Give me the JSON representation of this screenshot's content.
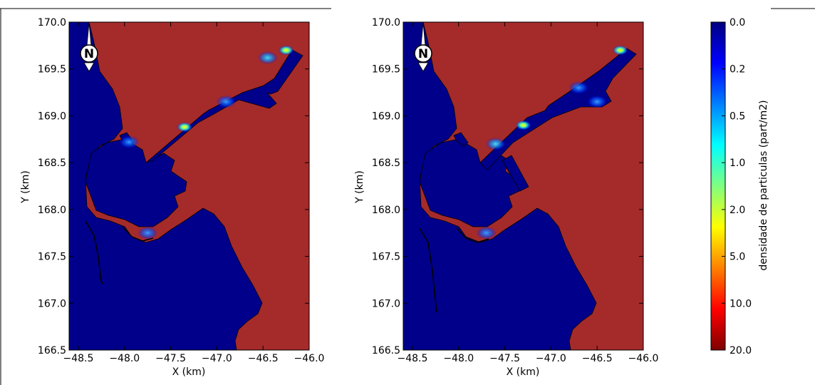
{
  "chart_data": [
    {
      "type": "heatmap",
      "panel": "left",
      "xlabel": "X (km)",
      "ylabel": "Y (km)",
      "xlim": [
        -48.6,
        -46.0
      ],
      "ylim": [
        166.5,
        170.0
      ],
      "xticks": [
        "−48.5",
        "−48.0",
        "−47.5",
        "−47.0",
        "−46.5",
        "−46.0"
      ],
      "xtick_values": [
        -48.5,
        -48.0,
        -47.5,
        -47.0,
        -46.5,
        -46.0
      ],
      "yticks": [
        "166.5",
        "167.0",
        "167.5",
        "168.0",
        "168.5",
        "169.0",
        "169.5",
        "170.0"
      ],
      "ytick_values": [
        166.5,
        167.0,
        167.5,
        168.0,
        168.5,
        169.0,
        169.5,
        170.0
      ],
      "background_color": "#a52a2a",
      "water_color": "#00008b",
      "compass_label": "N",
      "hotspots": [
        {
          "x": -46.25,
          "y": 169.7,
          "level": "yellow"
        },
        {
          "x": -46.45,
          "y": 169.62,
          "level": "cyan"
        },
        {
          "x": -47.35,
          "y": 168.88,
          "level": "yellow"
        },
        {
          "x": -46.9,
          "y": 169.15,
          "level": "lightblue"
        },
        {
          "x": -47.95,
          "y": 168.72,
          "level": "lightblue"
        },
        {
          "x": -47.75,
          "y": 167.75,
          "level": "lightblue"
        }
      ]
    },
    {
      "type": "heatmap",
      "panel": "right",
      "xlabel": "X (km)",
      "ylabel": "Y (km)",
      "xlim": [
        -48.6,
        -46.0
      ],
      "ylim": [
        166.5,
        170.0
      ],
      "xticks": [
        "−48.5",
        "−48.0",
        "−47.5",
        "−47.0",
        "−46.5",
        "−46.0"
      ],
      "xtick_values": [
        -48.5,
        -48.0,
        -47.5,
        -47.0,
        -46.5,
        -46.0
      ],
      "yticks": [
        "166.5",
        "167.0",
        "167.5",
        "168.0",
        "168.5",
        "169.0",
        "169.5",
        "170.0"
      ],
      "ytick_values": [
        166.5,
        167.0,
        167.5,
        168.0,
        168.5,
        169.0,
        169.5,
        170.0
      ],
      "background_color": "#a52a2a",
      "water_color": "#00008b",
      "compass_label": "N",
      "hotspots": [
        {
          "x": -46.25,
          "y": 169.7,
          "level": "yellow"
        },
        {
          "x": -47.3,
          "y": 168.9,
          "level": "yellow"
        },
        {
          "x": -46.7,
          "y": 169.3,
          "level": "lightblue"
        },
        {
          "x": -46.5,
          "y": 169.15,
          "level": "lightblue"
        },
        {
          "x": -47.6,
          "y": 168.7,
          "level": "cyan"
        },
        {
          "x": -47.7,
          "y": 167.75,
          "level": "lightblue"
        }
      ]
    }
  ],
  "colorbar": {
    "title": "densidade de particulas (part/m2)",
    "ticks": [
      "0.0",
      "0.2",
      "0.5",
      "1.0",
      "2.0",
      "5.0",
      "10.0",
      "20.0"
    ],
    "colors": [
      "#00007f",
      "#0000ff",
      "#0080ff",
      "#00ffff",
      "#80ff80",
      "#ffff00",
      "#ff8000",
      "#ff0000",
      "#7f0000"
    ]
  }
}
